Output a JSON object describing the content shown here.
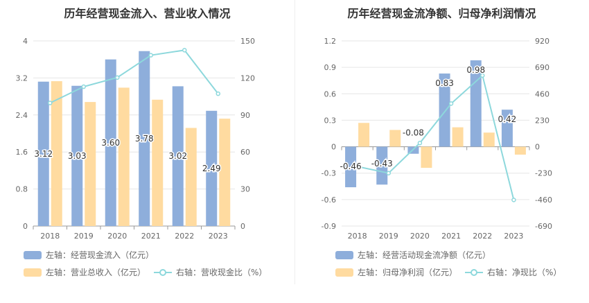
{
  "chart_data": [
    {
      "type": "bar",
      "title": "历年经营现金流入、营业收入情况",
      "categories": [
        "2018",
        "2019",
        "2020",
        "2021",
        "2022",
        "2023"
      ],
      "left_axis": {
        "min": 0,
        "max": 4,
        "ticks": [
          "0",
          "0.8",
          "1.6",
          "2.4",
          "3.2",
          "4"
        ]
      },
      "right_axis": {
        "min": 0,
        "max": 150,
        "ticks": [
          "0",
          "30",
          "60",
          "90",
          "120",
          "150"
        ]
      },
      "grid": true,
      "legend_position": "bottom-left",
      "series": [
        {
          "name": "左轴：经营现金流入（亿元）",
          "type": "bar",
          "axis": "left",
          "color": "#8eaedb",
          "values": [
            3.12,
            3.03,
            3.6,
            3.78,
            3.02,
            2.49
          ],
          "labels": [
            "3.12",
            "3.03",
            "3.60",
            "3.78",
            "3.02",
            "2.49"
          ]
        },
        {
          "name": "左轴：营业总收入（亿元）",
          "type": "bar",
          "axis": "left",
          "color": "#ffdba0",
          "values": [
            3.13,
            2.68,
            2.99,
            2.73,
            2.12,
            2.32
          ]
        },
        {
          "name": "右轴：营收现金比（%）",
          "type": "line",
          "axis": "right",
          "color": "#8dd8dc",
          "values": [
            99.7,
            112.9,
            120.3,
            138.4,
            142.5,
            107.2
          ]
        }
      ]
    },
    {
      "type": "bar",
      "title": "历年经营现金流净额、归母净利润情况",
      "categories": [
        "2018",
        "2019",
        "2020",
        "2021",
        "2022",
        "2023"
      ],
      "left_axis": {
        "min": -0.9,
        "max": 1.2,
        "ticks": [
          "-0.9",
          "-0.6",
          "-0.3",
          "0",
          "0.3",
          "0.6",
          "0.9",
          "1.2"
        ]
      },
      "right_axis": {
        "min": -690,
        "max": 920,
        "ticks": [
          "-690",
          "-460",
          "-230",
          "0",
          "230",
          "460",
          "690",
          "920"
        ]
      },
      "grid": true,
      "legend_position": "bottom-left",
      "series": [
        {
          "name": "左轴：经营活动现金流净额（亿元）",
          "type": "bar",
          "axis": "left",
          "color": "#8eaedb",
          "values": [
            -0.46,
            -0.43,
            -0.08,
            0.83,
            0.98,
            0.42
          ],
          "labels": [
            "-0.46",
            "-0.43",
            "-0.08",
            "0.83",
            "0.98",
            "0.42"
          ]
        },
        {
          "name": "左轴：归母净利润（亿元）",
          "type": "bar",
          "axis": "left",
          "color": "#ffdba0",
          "values": [
            0.27,
            0.19,
            -0.24,
            0.22,
            0.16,
            -0.09
          ]
        },
        {
          "name": "右轴：净现比（%）",
          "type": "line",
          "axis": "right",
          "color": "#8dd8dc",
          "values": [
            -172,
            -230,
            32,
            375,
            619,
            -463
          ]
        }
      ]
    }
  ]
}
